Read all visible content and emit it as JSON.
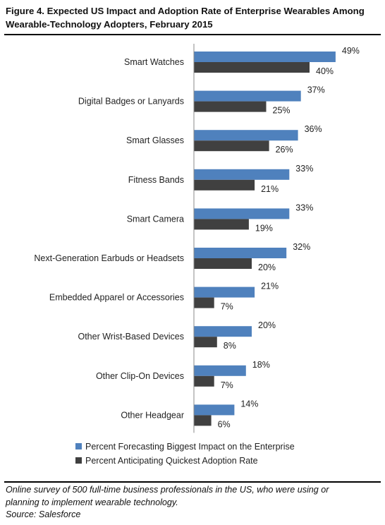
{
  "figure": {
    "title": "Figure 4. Expected US Impact and Adoption Rate of Enterprise Wearables Among Wearable-Technology Adopters, February 2015",
    "note_lines": [
      "Online survey of 500 full-time business professionals in the US, who were using or",
      "planning to implement wearable technology.",
      "Source: Salesforce"
    ]
  },
  "chart_data": {
    "type": "bar",
    "orientation": "horizontal",
    "categories": [
      "Smart Watches",
      "Digital Badges or Lanyards",
      "Smart Glasses",
      "Fitness Bands",
      "Smart Camera",
      "Next-Generation Earbuds or Headsets",
      "Embedded Apparel or Accessories",
      "Other Wrist-Based Devices",
      "Other Clip-On Devices",
      "Other Headgear"
    ],
    "series": [
      {
        "name": "Percent Forecasting Biggest Impact on the Enterprise",
        "color": "#4f81bd",
        "values": [
          49,
          37,
          36,
          33,
          33,
          32,
          21,
          20,
          18,
          14
        ]
      },
      {
        "name": "Percent Anticipating Quickest Adoption Rate",
        "color": "#404040",
        "values": [
          40,
          25,
          26,
          21,
          19,
          20,
          7,
          8,
          7,
          6
        ]
      }
    ],
    "value_suffix": "%",
    "xlim": [
      0,
      55
    ],
    "grid": false,
    "legend_position": "bottom"
  }
}
